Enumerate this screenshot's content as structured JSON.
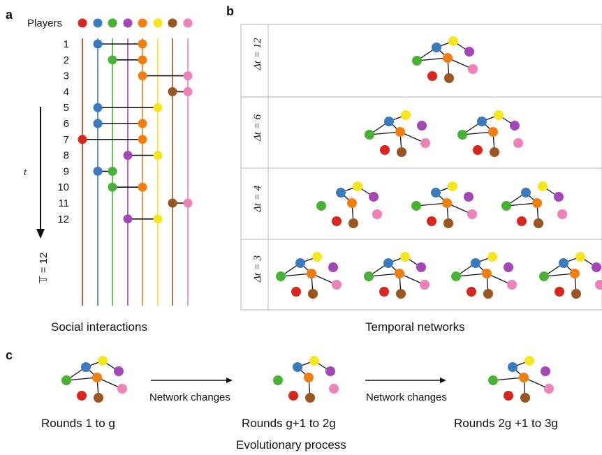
{
  "panels": {
    "a": "a",
    "b": "b",
    "c": "c"
  },
  "colors": [
    "#d7261e",
    "#3a7bbf",
    "#48b234",
    "#a347b8",
    "#f07f10",
    "#f5e61e",
    "#9b5520",
    "#ee82b8"
  ],
  "panel_a": {
    "players_label": "Players",
    "round_labels": [
      "1",
      "2",
      "3",
      "4",
      "5",
      "6",
      "7",
      "8",
      "9",
      "10",
      "11",
      "12"
    ],
    "interactions": [
      [
        1,
        4
      ],
      [
        2,
        4
      ],
      [
        4,
        7
      ],
      [
        6,
        7
      ],
      [
        1,
        5
      ],
      [
        1,
        4
      ],
      [
        0,
        4
      ],
      [
        3,
        5
      ],
      [
        1,
        2
      ],
      [
        2,
        4
      ],
      [
        6,
        7
      ],
      [
        3,
        5
      ]
    ],
    "time_symbol": "t",
    "total_label": "𝕋 = 12",
    "caption": "Social interactions"
  },
  "panel_b": {
    "rows": [
      {
        "label": "Δt = 12",
        "count": 1
      },
      {
        "label": "Δt = 6",
        "count": 2
      },
      {
        "label": "Δt = 4",
        "count": 3
      },
      {
        "label": "Δt = 3",
        "count": 4
      }
    ],
    "caption": "Temporal networks"
  },
  "panel_c": {
    "arrow_label_1": "Network changes",
    "arrow_label_2": "Network changes",
    "round_label_1": "Rounds 1 to g",
    "round_label_2": "Rounds g+1 to 2g",
    "round_label_3": "Rounds 2g +1 to 3g",
    "caption": "Evolutionary process"
  }
}
